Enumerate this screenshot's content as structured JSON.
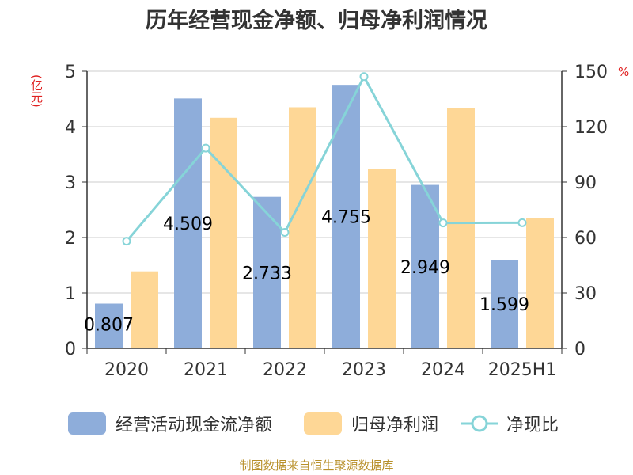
{
  "title": "历年经营现金净额、归母净利润情况",
  "source": "制图数据来自恒生聚源数据库",
  "colors": {
    "cash_flow": "#8eadda",
    "net_profit": "#fed796",
    "ratio": "#86d4d8",
    "grid": "#cccccc",
    "axis": "#333333"
  },
  "chart_data": {
    "type": "bar",
    "categories": [
      "2020",
      "2021",
      "2022",
      "2023",
      "2024",
      "2025H1"
    ],
    "ylabel": "(亿元)",
    "ylabel_right": "%",
    "ylim": [
      0,
      5
    ],
    "yticks": [
      "0",
      "1",
      "2",
      "3",
      "4",
      "5"
    ],
    "ylim_right": [
      0,
      150
    ],
    "yticks_right": [
      "0",
      "30",
      "60",
      "90",
      "120",
      "150"
    ],
    "grid": true,
    "legend_position": "bottom",
    "series": [
      {
        "name": "经营活动现金流净额",
        "type": "bar",
        "values": [
          0.807,
          4.509,
          2.733,
          4.755,
          2.949,
          1.599
        ],
        "labels": [
          "0.807",
          "4.509",
          "2.733",
          "4.755",
          "2.949",
          "1.599"
        ]
      },
      {
        "name": "归母净利润",
        "type": "bar",
        "values": [
          1.39,
          4.16,
          4.35,
          3.23,
          4.34,
          2.35
        ]
      },
      {
        "name": "净现比",
        "type": "line",
        "axis": "right",
        "values": [
          58.0,
          108.4,
          62.8,
          147.1,
          67.9,
          68.0
        ]
      }
    ]
  }
}
